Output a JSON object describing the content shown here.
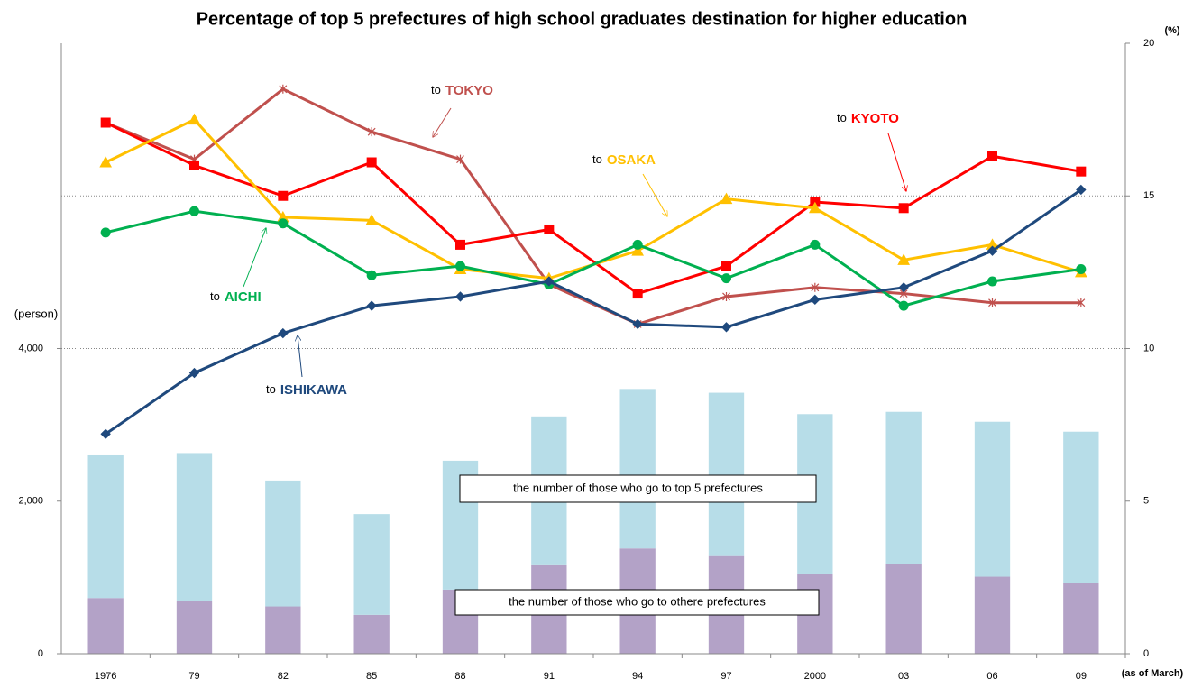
{
  "chart_data": {
    "type": "bar-line",
    "title": "Percentage of top 5 prefectures of high school graduates destination for higher education",
    "ylabel": "(person)",
    "y2label": "(%)",
    "xlabel": "(as of March)",
    "categories": [
      "1976",
      "79",
      "82",
      "85",
      "88",
      "91",
      "94",
      "97",
      "2000",
      "03",
      "06",
      "09"
    ],
    "ylim": [
      0,
      8000
    ],
    "yticks": [
      0,
      {
        "value": 2000,
        "label": "2,000"
      },
      {
        "value": 4000,
        "label": "4,000"
      }
    ],
    "y2lim": [
      0,
      20
    ],
    "y2ticks": [
      0,
      5,
      10,
      15,
      20
    ],
    "grid": true,
    "series": [
      {
        "name": "the number of those who go to othere prefectures",
        "type": "bar",
        "color": "#b3a2c7",
        "values": [
          730,
          690,
          620,
          510,
          840,
          1160,
          1380,
          1280,
          1040,
          1170,
          1010,
          930
        ]
      },
      {
        "name": "the number of those who go to top 5 prefectures",
        "type": "bar",
        "color": "#b7dde8",
        "values": [
          1870,
          1940,
          1650,
          1320,
          1690,
          1950,
          2090,
          2140,
          2100,
          2000,
          2030,
          1980
        ]
      },
      {
        "name": "TOKYO",
        "type": "line",
        "axis": "y2",
        "marker": "x",
        "color": "#c0504d",
        "values": [
          17.4,
          16.2,
          18.5,
          17.1,
          16.2,
          12.1,
          10.8,
          11.7,
          12.0,
          11.8,
          11.5,
          11.5
        ]
      },
      {
        "name": "KYOTO",
        "type": "line",
        "axis": "y2",
        "marker": "square",
        "color": "#ff0000",
        "values": [
          17.4,
          16.0,
          15.0,
          16.1,
          13.4,
          13.9,
          11.8,
          12.7,
          14.8,
          14.6,
          16.3,
          15.8
        ]
      },
      {
        "name": "OSAKA",
        "type": "line",
        "axis": "y2",
        "marker": "triangle",
        "color": "#ffc000",
        "values": [
          16.1,
          17.5,
          14.3,
          14.2,
          12.6,
          12.3,
          13.2,
          14.9,
          14.6,
          12.9,
          13.4,
          12.5
        ]
      },
      {
        "name": "AICHI",
        "type": "line",
        "axis": "y2",
        "marker": "circle",
        "color": "#00b050",
        "values": [
          13.8,
          14.5,
          14.1,
          12.4,
          12.7,
          12.1,
          13.4,
          12.3,
          13.4,
          11.4,
          12.2,
          12.6
        ]
      },
      {
        "name": "ISHIKAWA",
        "type": "line",
        "axis": "y2",
        "marker": "diamond",
        "color": "#1f497d",
        "values": [
          7.2,
          9.2,
          10.5,
          11.4,
          11.7,
          12.2,
          10.8,
          10.7,
          11.6,
          12.0,
          13.2,
          15.2
        ]
      }
    ],
    "line_label_prefix": "to"
  }
}
